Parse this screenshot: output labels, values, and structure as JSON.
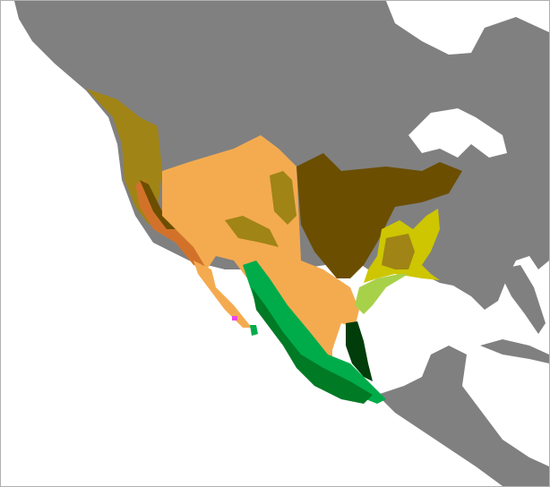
{
  "map": {
    "colors": {
      "ocean": "#ffffff",
      "land_other": "#808080",
      "orange_region": "#f4ab50",
      "olive_region": "#a08416",
      "brown_region": "#6b4e00",
      "yellow_region": "#cdc600",
      "light_green_region": "#a8d14a",
      "green_region": "#00ac4a",
      "dark_green_region": "#007a25",
      "darkest_green_region": "#003d0a",
      "rust_region": "#d2722a",
      "magenta_region": "#ee44ee",
      "lakes": "#ffffff"
    }
  }
}
